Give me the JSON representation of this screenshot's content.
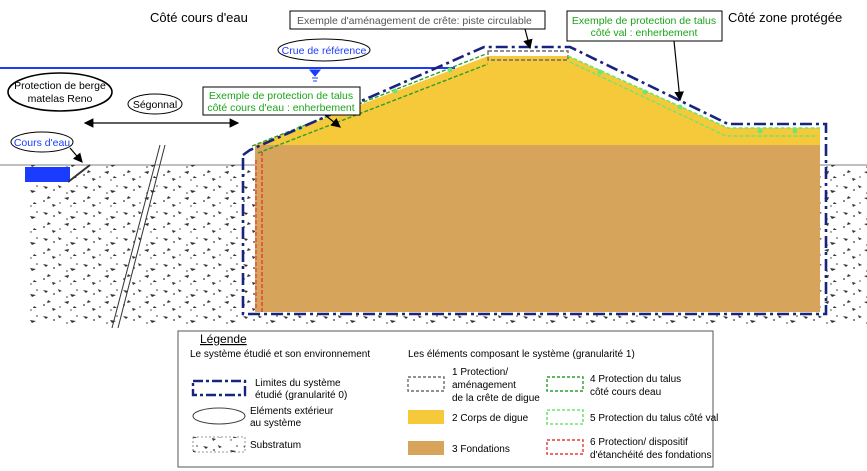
{
  "header": {
    "left_side": "Côté cours d'eau",
    "right_side": "Côté zone protégée"
  },
  "callouts": {
    "crest": "Exemple d'aménagement de crête: piste circulable",
    "reference_flood": "Crue de référence",
    "bank_protection": [
      "Protection de berge",
      "matelas Reno"
    ],
    "segonnal": "Ségonnal",
    "watercourse": "Cours d'eau",
    "slope_water": [
      "Exemple de protection de talus",
      "côté cours d'eau : enherbement"
    ],
    "slope_land": [
      "Exemple de protection de talus",
      "côté val : enherbement"
    ]
  },
  "legend": {
    "title": "Légende",
    "env_title": "Le système étudié et son environnement",
    "elements_title": "Les éléments composant le système (granularité 1)",
    "env_items": [
      {
        "label": [
          "Limites du système",
          "étudié (granularité 0)"
        ],
        "icon": "dash-dot-rect-icon"
      },
      {
        "label": [
          "Eléments extérieur",
          "au système"
        ],
        "icon": "ellipse-icon"
      },
      {
        "label": [
          "Substratum"
        ],
        "icon": "speckle-rect-icon"
      }
    ],
    "element_items": [
      {
        "label": [
          "1 Protection/",
          "aménagement",
          "de la crête de digue"
        ],
        "color": "#6b6b6b"
      },
      {
        "label": [
          "4 Protection du talus",
          " côté cours deau"
        ],
        "color": "#2e9e2e"
      },
      {
        "label": [
          "2 Corps de digue"
        ],
        "color": "#f6c93a"
      },
      {
        "label": [
          "5 Protection du talus côté val"
        ],
        "color": "#6ee66e"
      },
      {
        "label": [
          "3 Fondations"
        ],
        "color": "#d6a45a"
      },
      {
        "label": [
          "6 Protection/ dispositif",
          "d'étanchéité  des fondations"
        ],
        "color": "#e83a3a"
      }
    ]
  },
  "colors": {
    "water": "#1a3cff",
    "foundation": "#d6a45a",
    "dike_body": "#f6c93a",
    "boundary": "#1a237e",
    "callout_green": "#1aa51a",
    "callout_blue": "#1a3cff"
  }
}
